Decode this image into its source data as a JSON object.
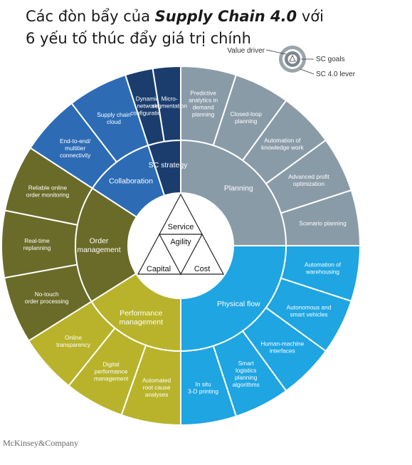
{
  "title": {
    "line1_pre": "Các đòn bẩy của ",
    "line1_bold": "Supply Chain 4.0",
    "line1_post": " với",
    "line2": "6 yếu tố thúc đẩy giá trị chính"
  },
  "legend": {
    "value_driver": "Value driver",
    "sc_goals": "SC goals",
    "sc_lever": "SC 4.0 lever"
  },
  "center": {
    "service": "Service",
    "agility": "Agility",
    "capital": "Capital",
    "cost": "Cost"
  },
  "goals": [
    {
      "label": [
        "Planning"
      ],
      "color": "#8a9ba8",
      "levers": [
        [
          "Predictive",
          "analytics in",
          "demand",
          "planning"
        ],
        [
          "Closed-loop",
          "planning"
        ],
        [
          "Automation of",
          "knowledge work"
        ],
        [
          "Advanced profit",
          "optimization"
        ],
        [
          "Scenario planning"
        ]
      ]
    },
    {
      "label": [
        "Physical flow"
      ],
      "color": "#1ea5e2",
      "levers": [
        [
          "Automation of",
          "warehousing"
        ],
        [
          "Autonomous and",
          "smart vehicles"
        ],
        [
          "Human-machine",
          "interfaces"
        ],
        [
          "Smart",
          "logistics",
          "planning",
          "algorithms"
        ],
        [
          "In situ",
          "3-D printing"
        ]
      ]
    },
    {
      "label": [
        "Performance",
        "management"
      ],
      "color": "#b9b32b",
      "levers": [
        [
          "Automated",
          "root cause",
          "analyses"
        ],
        [
          "Digital",
          "performance",
          "management"
        ],
        [
          "Online",
          "transparency"
        ]
      ]
    },
    {
      "label": [
        "Order",
        "management"
      ],
      "color": "#6a6b28",
      "levers": [
        [
          "No-touch",
          "order processing"
        ],
        [
          "Real-time",
          "replanning"
        ],
        [
          "Reliable online",
          "order monitoring"
        ]
      ]
    },
    {
      "label": [
        "Collaboration"
      ],
      "color": "#2d6cb5",
      "levers": [
        [
          "End-to-end/",
          "multitier",
          "connectivity"
        ],
        [
          "Supply chain",
          "cloud"
        ]
      ]
    },
    {
      "label": [
        "SC strategy"
      ],
      "color": "#1b3d6e",
      "levers": [
        [
          "Dynamic",
          "network",
          "configuration"
        ],
        [
          "Micro-",
          "segmentation"
        ]
      ]
    }
  ],
  "brand": "McKinsey&Company"
}
